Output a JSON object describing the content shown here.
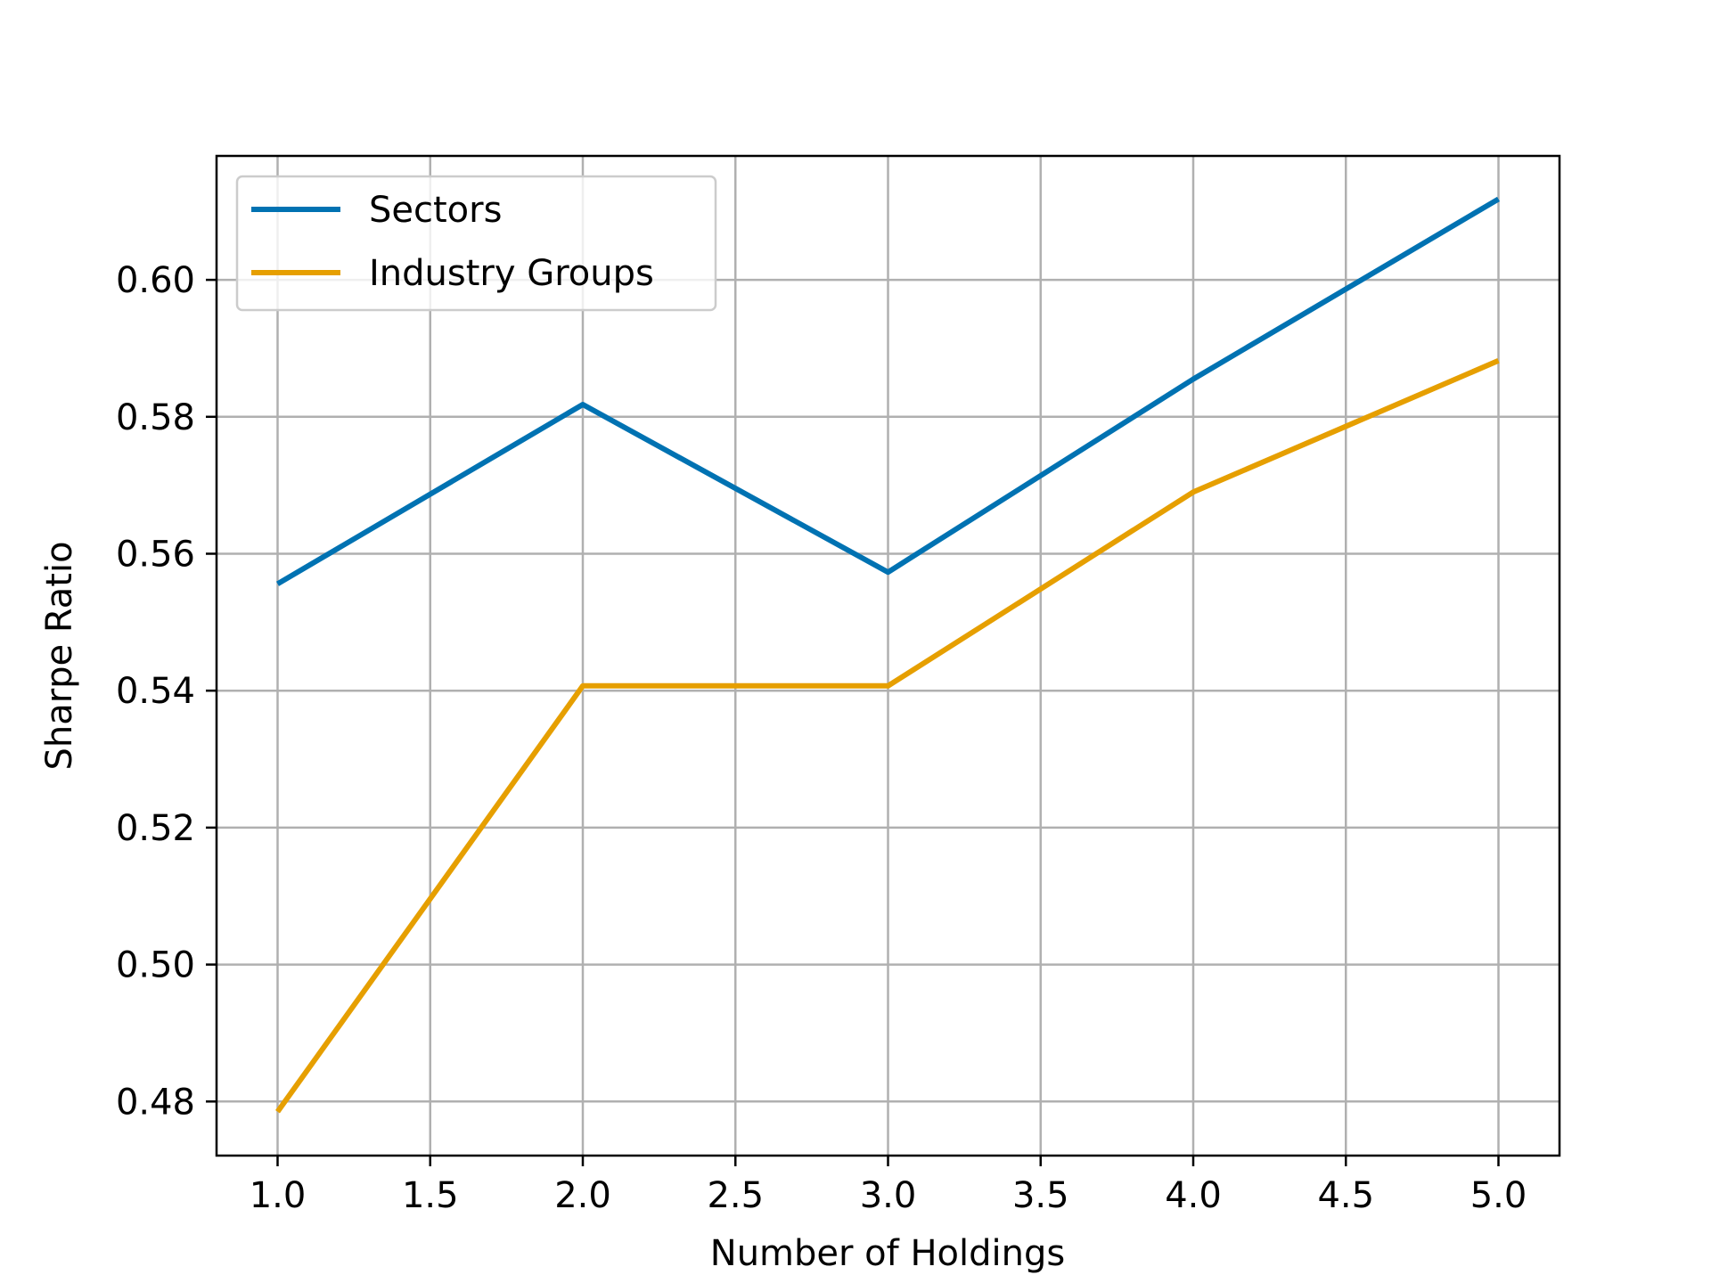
{
  "chart_data": {
    "type": "line",
    "xlabel": "Number of Holdings",
    "ylabel": "Sharpe Ratio",
    "xlim": [
      0.8,
      5.2
    ],
    "ylim": [
      0.4721,
      0.6181
    ],
    "xticks": [
      1.0,
      1.5,
      2.0,
      2.5,
      3.0,
      3.5,
      4.0,
      4.5,
      5.0
    ],
    "xtick_labels": [
      "1.0",
      "1.5",
      "2.0",
      "2.5",
      "3.0",
      "3.5",
      "4.0",
      "4.5",
      "5.0"
    ],
    "yticks": [
      0.48,
      0.5,
      0.52,
      0.54,
      0.56,
      0.58,
      0.6
    ],
    "ytick_labels": [
      "0.48",
      "0.50",
      "0.52",
      "0.54",
      "0.56",
      "0.58",
      "0.60"
    ],
    "grid": true,
    "legend_position": "top-left",
    "series": [
      {
        "name": "Sectors",
        "color": "#0072b2",
        "x": [
          1,
          2,
          3,
          4,
          5
        ],
        "y": [
          0.5556,
          0.5818,
          0.5573,
          0.5855,
          0.6118
        ]
      },
      {
        "name": "Industry Groups",
        "color": "#e69f00",
        "x": [
          1,
          2,
          3,
          4,
          5
        ],
        "y": [
          0.4785,
          0.5407,
          0.5407,
          0.569,
          0.5882
        ]
      }
    ]
  }
}
